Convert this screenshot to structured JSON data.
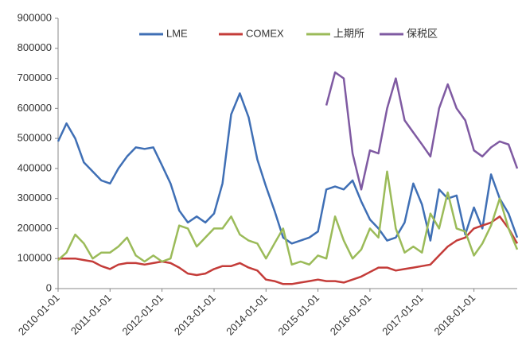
{
  "chart_data": {
    "type": "line",
    "x": [
      "2010-01-01",
      "2010-03-01",
      "2010-05-01",
      "2010-07-01",
      "2010-09-01",
      "2010-11-01",
      "2011-01-01",
      "2011-03-01",
      "2011-05-01",
      "2011-07-01",
      "2011-09-01",
      "2011-11-01",
      "2012-01-01",
      "2012-03-01",
      "2012-05-01",
      "2012-07-01",
      "2012-09-01",
      "2012-11-01",
      "2013-01-01",
      "2013-03-01",
      "2013-05-01",
      "2013-07-01",
      "2013-09-01",
      "2013-11-01",
      "2014-01-01",
      "2014-03-01",
      "2014-05-01",
      "2014-07-01",
      "2014-09-01",
      "2014-11-01",
      "2015-01-01",
      "2015-03-01",
      "2015-05-01",
      "2015-07-01",
      "2015-09-01",
      "2015-11-01",
      "2016-01-01",
      "2016-03-01",
      "2016-05-01",
      "2016-07-01",
      "2016-09-01",
      "2016-11-01",
      "2017-01-01",
      "2017-03-01",
      "2017-05-01",
      "2017-07-01",
      "2017-09-01",
      "2017-11-01",
      "2018-01-01",
      "2018-03-01",
      "2018-05-01",
      "2018-07-01",
      "2018-09-01",
      "2018-11-01"
    ],
    "series": [
      {
        "name": "LME",
        "color": "#3f6fb5",
        "values": [
          490000,
          550000,
          500000,
          420000,
          390000,
          360000,
          350000,
          400000,
          440000,
          470000,
          465000,
          470000,
          410000,
          350000,
          260000,
          220000,
          240000,
          220000,
          250000,
          350000,
          580000,
          650000,
          570000,
          430000,
          340000,
          260000,
          170000,
          150000,
          160000,
          170000,
          190000,
          330000,
          340000,
          330000,
          360000,
          290000,
          230000,
          200000,
          160000,
          170000,
          220000,
          350000,
          280000,
          160000,
          330000,
          300000,
          310000,
          180000,
          270000,
          200000,
          380000,
          300000,
          250000,
          170000
        ]
      },
      {
        "name": "COMEX",
        "color": "#c43c39",
        "values": [
          100000,
          100000,
          100000,
          95000,
          90000,
          75000,
          65000,
          80000,
          85000,
          85000,
          80000,
          85000,
          90000,
          85000,
          70000,
          50000,
          45000,
          50000,
          65000,
          75000,
          75000,
          85000,
          70000,
          60000,
          30000,
          25000,
          15000,
          15000,
          20000,
          25000,
          30000,
          25000,
          25000,
          20000,
          30000,
          40000,
          55000,
          70000,
          70000,
          60000,
          65000,
          70000,
          75000,
          80000,
          110000,
          140000,
          160000,
          170000,
          200000,
          210000,
          220000,
          240000,
          200000,
          150000
        ]
      },
      {
        "name": "上期所",
        "color": "#9bbb59",
        "values": [
          95000,
          120000,
          180000,
          150000,
          100000,
          120000,
          120000,
          140000,
          170000,
          110000,
          90000,
          110000,
          90000,
          100000,
          210000,
          200000,
          140000,
          170000,
          200000,
          200000,
          240000,
          180000,
          160000,
          150000,
          100000,
          150000,
          200000,
          80000,
          90000,
          80000,
          110000,
          100000,
          240000,
          160000,
          100000,
          130000,
          200000,
          170000,
          390000,
          200000,
          120000,
          140000,
          120000,
          250000,
          200000,
          320000,
          200000,
          190000,
          110000,
          150000,
          210000,
          300000,
          200000,
          130000
        ]
      },
      {
        "name": "保税区",
        "color": "#7f5aa2",
        "values": [
          null,
          null,
          null,
          null,
          null,
          null,
          null,
          null,
          null,
          null,
          null,
          null,
          null,
          null,
          null,
          null,
          null,
          null,
          null,
          null,
          null,
          null,
          null,
          null,
          null,
          null,
          null,
          null,
          null,
          null,
          null,
          610000,
          720000,
          700000,
          450000,
          330000,
          460000,
          450000,
          600000,
          700000,
          560000,
          520000,
          480000,
          440000,
          600000,
          680000,
          600000,
          560000,
          460000,
          440000,
          470000,
          490000,
          480000,
          400000
        ]
      }
    ],
    "xlim": [
      "2010-01-01",
      "2018-11-01"
    ],
    "xticks": [
      "2010-01-01",
      "2011-01-01",
      "2012-01-01",
      "2013-01-01",
      "2014-01-01",
      "2015-01-01",
      "2016-01-01",
      "2017-01-01",
      "2018-01-01"
    ],
    "ylim": [
      0,
      900000
    ],
    "yticks": [
      0,
      100000,
      200000,
      300000,
      400000,
      500000,
      600000,
      700000,
      800000,
      900000
    ],
    "grid": false,
    "legend": "top"
  }
}
